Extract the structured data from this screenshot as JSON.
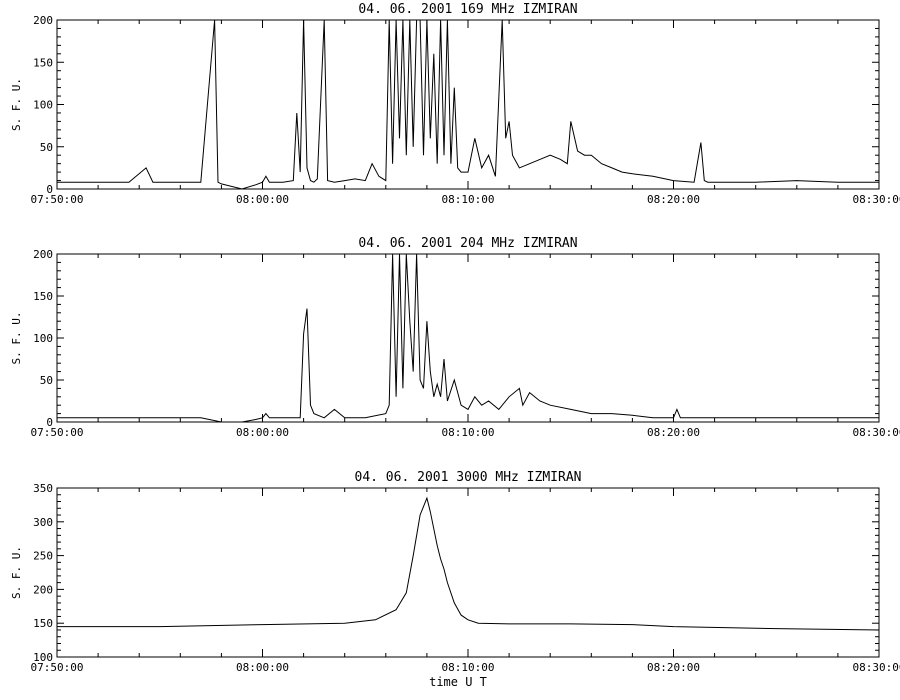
{
  "chart_data": [
    {
      "type": "line",
      "title": "04.  06.  2001    169 MHz    IZMIRAN",
      "ylabel": "S. F. U.",
      "xlabel": "",
      "xlim": [
        "07:50:00",
        "08:30:00"
      ],
      "ylim": [
        0,
        200
      ],
      "x_ticks": [
        "07:50:00",
        "08:00:00",
        "08:10:00",
        "08:20:00",
        "08:30:00"
      ],
      "y_ticks": [
        0,
        50,
        100,
        150,
        200
      ],
      "grid": false,
      "series": [
        {
          "x": [
            "07:50:00",
            "07:52:00",
            "07:53:30",
            "07:54:20",
            "07:54:40",
            "07:56:00",
            "07:57:00",
            "07:57:40",
            "07:57:50",
            "07:58:00",
            "07:59:00",
            "07:59:40",
            "08:00:00",
            "08:00:10",
            "08:00:20",
            "08:01:00",
            "08:01:30",
            "08:01:40",
            "08:01:50",
            "08:02:00",
            "08:02:10",
            "08:02:20",
            "08:02:30",
            "08:02:40",
            "08:03:00",
            "08:03:10",
            "08:03:30",
            "08:04:00",
            "08:04:30",
            "08:05:00",
            "08:05:20",
            "08:05:40",
            "08:06:00",
            "08:06:10",
            "08:06:20",
            "08:06:30",
            "08:06:40",
            "08:06:50",
            "08:07:00",
            "08:07:10",
            "08:07:20",
            "08:07:30",
            "08:07:40",
            "08:07:50",
            "08:08:00",
            "08:08:10",
            "08:08:20",
            "08:08:30",
            "08:08:40",
            "08:08:50",
            "08:09:00",
            "08:09:10",
            "08:09:20",
            "08:09:30",
            "08:09:40",
            "08:10:00",
            "08:10:20",
            "08:10:40",
            "08:11:00",
            "08:11:20",
            "08:11:40",
            "08:11:50",
            "08:12:00",
            "08:12:10",
            "08:12:30",
            "08:13:00",
            "08:13:30",
            "08:14:00",
            "08:14:30",
            "08:14:50",
            "08:15:00",
            "08:15:20",
            "08:15:40",
            "08:16:00",
            "08:16:30",
            "08:17:00",
            "08:17:30",
            "08:18:00",
            "08:19:00",
            "08:20:00",
            "08:21:00",
            "08:21:20",
            "08:21:30",
            "08:21:40",
            "08:22:00",
            "08:24:00",
            "08:26:00",
            "08:28:00",
            "08:30:00"
          ],
          "y": [
            8,
            8,
            8,
            25,
            8,
            8,
            8,
            200,
            8,
            6,
            0,
            5,
            8,
            15,
            8,
            8,
            10,
            90,
            20,
            200,
            25,
            10,
            8,
            12,
            200,
            10,
            8,
            10,
            12,
            10,
            30,
            15,
            10,
            200,
            30,
            200,
            60,
            200,
            40,
            200,
            50,
            200,
            200,
            40,
            200,
            60,
            160,
            30,
            200,
            40,
            200,
            30,
            120,
            25,
            20,
            20,
            60,
            25,
            40,
            15,
            200,
            60,
            80,
            40,
            25,
            30,
            35,
            40,
            35,
            30,
            80,
            45,
            40,
            40,
            30,
            25,
            20,
            18,
            15,
            10,
            8,
            55,
            10,
            8,
            8,
            8,
            10,
            8,
            8
          ]
        }
      ]
    },
    {
      "type": "line",
      "title": "04.  06.  2001    204 MHz    IZMIRAN",
      "ylabel": "S. F. U.",
      "xlabel": "",
      "xlim": [
        "07:50:00",
        "08:30:00"
      ],
      "ylim": [
        0,
        200
      ],
      "x_ticks": [
        "07:50:00",
        "08:00:00",
        "08:10:00",
        "08:20:00",
        "08:30:00"
      ],
      "y_ticks": [
        0,
        50,
        100,
        150,
        200
      ],
      "grid": false,
      "series": [
        {
          "x": [
            "07:50:00",
            "07:55:00",
            "07:57:00",
            "07:58:00",
            "07:59:00",
            "07:59:40",
            "08:00:00",
            "08:00:10",
            "08:00:20",
            "08:01:00",
            "08:01:50",
            "08:02:00",
            "08:02:10",
            "08:02:20",
            "08:02:30",
            "08:03:00",
            "08:03:30",
            "08:04:00",
            "08:05:00",
            "08:06:00",
            "08:06:10",
            "08:06:20",
            "08:06:30",
            "08:06:40",
            "08:06:50",
            "08:07:00",
            "08:07:10",
            "08:07:20",
            "08:07:30",
            "08:07:40",
            "08:07:50",
            "08:08:00",
            "08:08:10",
            "08:08:20",
            "08:08:30",
            "08:08:40",
            "08:08:50",
            "08:09:00",
            "08:09:20",
            "08:09:40",
            "08:10:00",
            "08:10:20",
            "08:10:40",
            "08:11:00",
            "08:11:30",
            "08:12:00",
            "08:12:30",
            "08:12:40",
            "08:13:00",
            "08:13:30",
            "08:14:00",
            "08:15:00",
            "08:16:00",
            "08:17:00",
            "08:18:00",
            "08:19:00",
            "08:20:00",
            "08:20:10",
            "08:20:20",
            "08:22:00",
            "08:25:00",
            "08:28:00",
            "08:30:00"
          ],
          "y": [
            5,
            5,
            5,
            0,
            0,
            3,
            5,
            10,
            5,
            5,
            5,
            105,
            135,
            20,
            10,
            5,
            15,
            5,
            5,
            10,
            20,
            200,
            30,
            200,
            40,
            200,
            120,
            60,
            200,
            50,
            40,
            120,
            60,
            30,
            45,
            30,
            75,
            25,
            50,
            20,
            15,
            30,
            20,
            25,
            15,
            30,
            40,
            20,
            35,
            25,
            20,
            15,
            10,
            10,
            8,
            5,
            5,
            15,
            5,
            5,
            5,
            5,
            5
          ]
        }
      ]
    },
    {
      "type": "line",
      "title": "04.  06.  2001    3000 MHz    IZMIRAN",
      "ylabel": "S. F. U.",
      "xlabel": "time  U T",
      "xlim": [
        "07:50:00",
        "08:30:00"
      ],
      "ylim": [
        100,
        350
      ],
      "x_ticks": [
        "07:50:00",
        "08:00:00",
        "08:10:00",
        "08:20:00",
        "08:30:00"
      ],
      "y_ticks": [
        100,
        150,
        200,
        250,
        300,
        350
      ],
      "grid": false,
      "series": [
        {
          "x": [
            "07:50:00",
            "07:55:00",
            "08:00:00",
            "08:04:00",
            "08:05:30",
            "08:06:30",
            "08:07:00",
            "08:07:20",
            "08:07:40",
            "08:08:00",
            "08:08:10",
            "08:08:30",
            "08:08:40",
            "08:08:50",
            "08:09:00",
            "08:09:20",
            "08:09:40",
            "08:10:00",
            "08:10:30",
            "08:12:00",
            "08:15:00",
            "08:18:00",
            "08:20:00",
            "08:25:00",
            "08:30:00"
          ],
          "y": [
            145,
            145,
            148,
            150,
            155,
            170,
            195,
            250,
            310,
            335,
            315,
            265,
            245,
            230,
            210,
            180,
            162,
            155,
            150,
            149,
            149,
            148,
            145,
            142,
            140
          ]
        }
      ]
    }
  ]
}
